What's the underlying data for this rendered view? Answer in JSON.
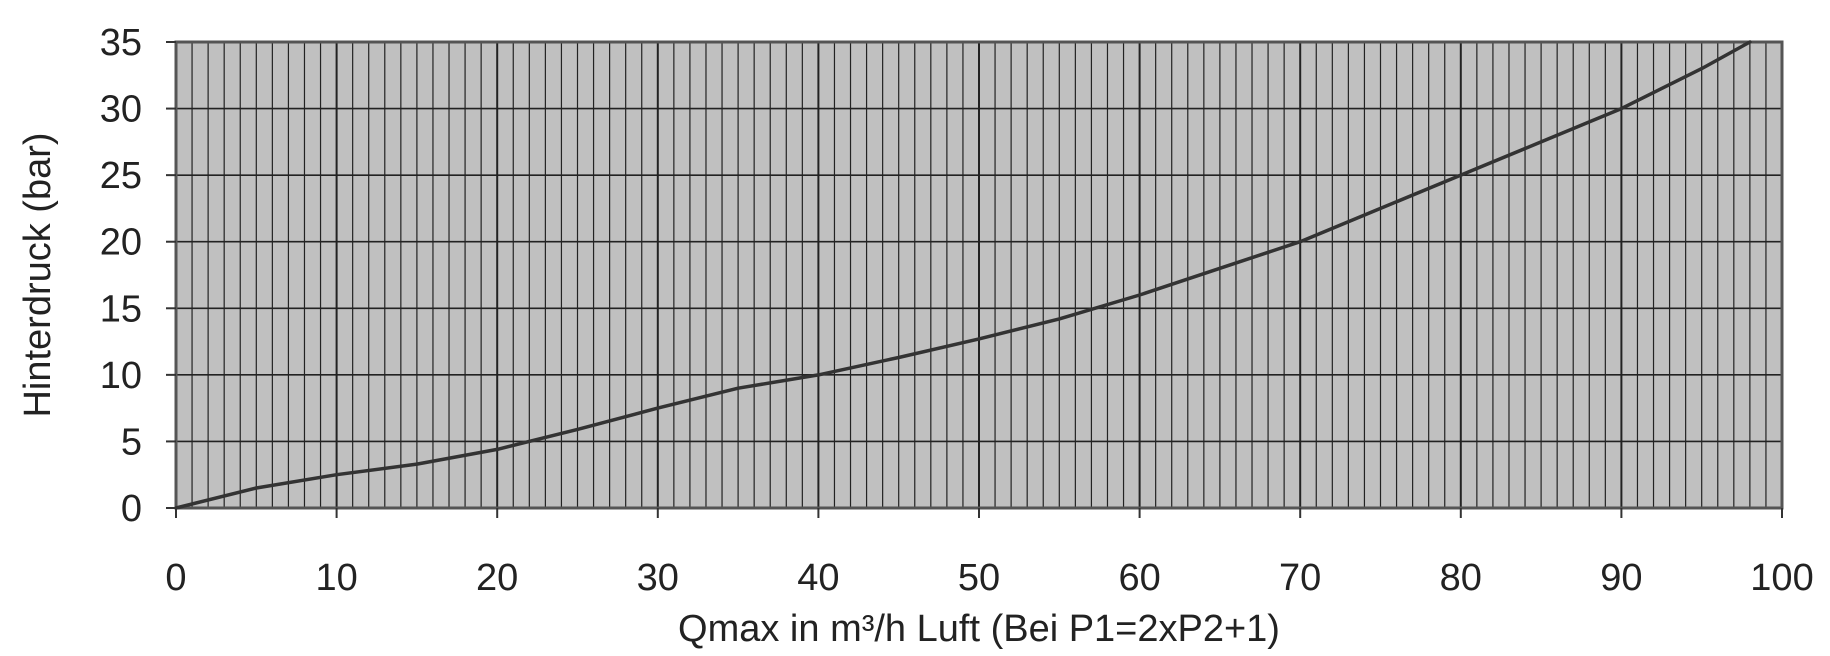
{
  "chart_data": {
    "type": "line",
    "title": "",
    "xlabel": "Qmax in m³/h Luft (Bei P1=2xP2+1)",
    "ylabel": "Hinterdruck  (bar)",
    "xlim": [
      0,
      100
    ],
    "ylim": [
      0,
      35
    ],
    "x_ticks": [
      "0",
      "10",
      "20",
      "30",
      "40",
      "50",
      "60",
      "70",
      "80",
      "90",
      "100"
    ],
    "y_ticks": [
      "0",
      "5",
      "10",
      "15",
      "20",
      "25",
      "30",
      "35"
    ],
    "grid": true,
    "x_minor_step": 1,
    "legend": "none",
    "colors": {
      "plot_background": "#c0c0c0",
      "line": "#333333",
      "grid": "#222222"
    },
    "series": [
      {
        "x": [
          0,
          5,
          10,
          15,
          20,
          25,
          30,
          35,
          40,
          45,
          50,
          55,
          60,
          65,
          70,
          75,
          80,
          85,
          88,
          90,
          95,
          98
        ],
        "y": [
          0,
          1.5,
          2.5,
          3.3,
          4.4,
          5.9,
          7.5,
          9.0,
          10.0,
          11.3,
          12.7,
          14.2,
          16.0,
          18.0,
          20.0,
          22.5,
          25.0,
          27.5,
          29.0,
          30.0,
          33.0,
          35.0
        ]
      }
    ]
  }
}
